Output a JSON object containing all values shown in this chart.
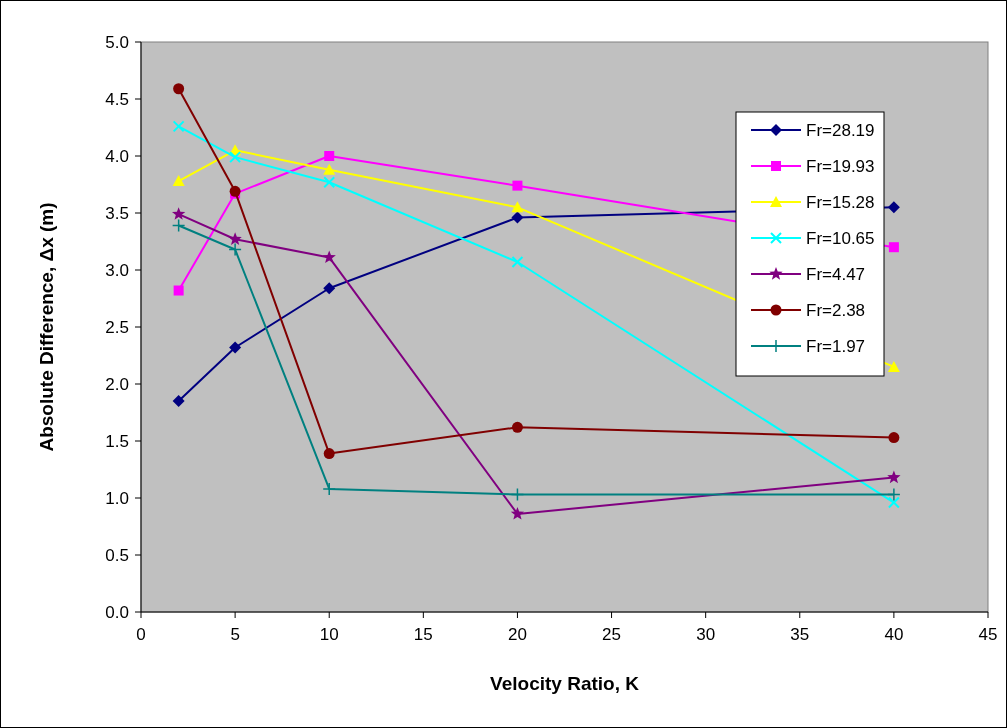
{
  "chart_data": {
    "type": "line",
    "xlabel": "Velocity Ratio, K",
    "ylabel": "Absolute Difference,  Δx (m)",
    "x": [
      2,
      5,
      10,
      20,
      40
    ],
    "xlim": [
      0,
      45
    ],
    "xticks": [
      0,
      5,
      10,
      15,
      20,
      25,
      30,
      35,
      40,
      45
    ],
    "ylim": [
      0,
      5
    ],
    "yticks": [
      {
        "value": 0,
        "label": "0.0"
      },
      {
        "value": 0.5,
        "label": "0.5"
      },
      {
        "value": 1,
        "label": "1.0"
      },
      {
        "value": 1.5,
        "label": "1.5"
      },
      {
        "value": 2,
        "label": "2.0"
      },
      {
        "value": 2.5,
        "label": "2.5"
      },
      {
        "value": 3,
        "label": "3.0"
      },
      {
        "value": 3.5,
        "label": "3.5"
      },
      {
        "value": 4,
        "label": "4.0"
      },
      {
        "value": 4.5,
        "label": "4.5"
      },
      {
        "value": 5,
        "label": "5.0"
      }
    ],
    "grid": false,
    "legend": "top right",
    "line_style": "solid",
    "series": [
      {
        "name": "Fr=28.19",
        "color": "#000080",
        "marker": "diamond",
        "values": [
          1.85,
          2.32,
          2.84,
          3.46,
          3.55
        ]
      },
      {
        "name": "Fr=19.93",
        "color": "#ff00ff",
        "marker": "square",
        "values": [
          2.82,
          3.67,
          4.0,
          3.74,
          3.2
        ]
      },
      {
        "name": "Fr=15.28",
        "color": "#ffff00",
        "marker": "triangle",
        "values": [
          3.78,
          4.05,
          3.88,
          3.55,
          2.15
        ]
      },
      {
        "name": "Fr=10.65",
        "color": "#00ffff",
        "marker": "cross",
        "values": [
          4.26,
          3.99,
          3.77,
          3.07,
          0.96
        ]
      },
      {
        "name": "Fr=4.47",
        "color": "#800080",
        "marker": "star",
        "values": [
          3.49,
          3.27,
          3.11,
          0.86,
          1.18
        ]
      },
      {
        "name": "Fr=2.38",
        "color": "#800000",
        "marker": "circle",
        "values": [
          4.59,
          3.69,
          1.39,
          1.62,
          1.53
        ]
      },
      {
        "name": "Fr=1.97",
        "color": "#008080",
        "marker": "plus",
        "values": [
          3.39,
          3.18,
          1.08,
          1.03,
          1.03
        ]
      }
    ]
  }
}
